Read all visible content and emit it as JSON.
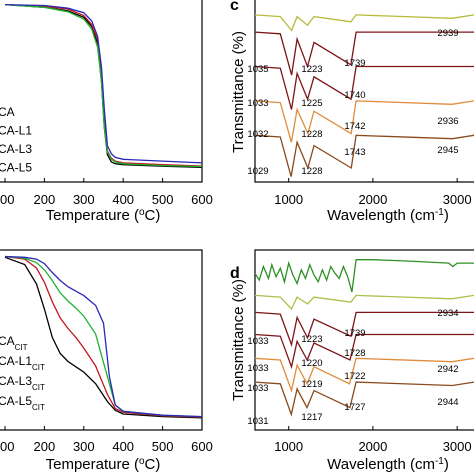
{
  "colors": {
    "black": "#000000",
    "red": "#c0171d",
    "green": "#1fb330",
    "blue": "#2b28b8",
    "olive": "#b7bb3c",
    "maroon": "#7f1418",
    "orange": "#e08c3c",
    "brown": "#8b4a1c",
    "dark_green": "#2f8f25",
    "lime": "#a8c24a"
  },
  "chart_data": [
    {
      "type": "line",
      "panel": "top-left",
      "xlabel": "Temperature (",
      "xlabel_unit": "o",
      "xlabel_end": "C)",
      "ylabel": "",
      "x_ticks": [
        "00",
        "200",
        "300",
        "400",
        "500",
        "600"
      ],
      "xlim": [
        100,
        600
      ],
      "legend": {
        "placement": "bottom-left",
        "entries": [
          "CA",
          "CA-L1",
          "CA-L3",
          "CA-L5"
        ]
      },
      "series": [
        {
          "name": "CA",
          "color": "black",
          "x": [
            100,
            200,
            260,
            300,
            320,
            335,
            345,
            352,
            360,
            370,
            380,
            400,
            500,
            600
          ],
          "y": [
            97.5,
            96.0,
            94.0,
            90.5,
            85.5,
            76.0,
            55.0,
            30.0,
            15.0,
            11.0,
            10.0,
            9.5,
            8.7,
            8.0
          ]
        },
        {
          "name": "CA-L1",
          "color": "red",
          "x": [
            100,
            200,
            260,
            300,
            320,
            335,
            345,
            352,
            360,
            370,
            380,
            400,
            500,
            600
          ],
          "y": [
            97.5,
            96.5,
            95.0,
            91.5,
            86.5,
            78.0,
            60.0,
            35.0,
            17.0,
            13.0,
            11.5,
            10.5,
            9.5,
            8.8
          ]
        },
        {
          "name": "CA-L3",
          "color": "green",
          "x": [
            100,
            200,
            260,
            300,
            320,
            335,
            345,
            352,
            360,
            370,
            380,
            400,
            500,
            600
          ],
          "y": [
            97.5,
            96.0,
            93.5,
            89.5,
            84.0,
            74.0,
            55.0,
            30.0,
            16.5,
            12.5,
            11.0,
            10.0,
            9.0,
            8.5
          ]
        },
        {
          "name": "CA-L5",
          "color": "blue",
          "x": [
            100,
            200,
            260,
            300,
            320,
            335,
            345,
            352,
            360,
            370,
            380,
            400,
            500,
            600
          ],
          "y": [
            97.5,
            97.0,
            95.5,
            93.0,
            88.5,
            80.0,
            63.0,
            40.0,
            20.0,
            15.5,
            13.5,
            12.5,
            11.5,
            10.5
          ]
        }
      ]
    },
    {
      "type": "line",
      "panel": "top-right",
      "label": "c",
      "xlabel": "Wavelength (cm",
      "xlabel_sup": "-1",
      "xlabel_end": ")",
      "ylabel": "Transmittance (%)",
      "x_ticks": [
        "1000",
        "2000",
        "3000"
      ],
      "xlim": [
        600,
        3200
      ],
      "series": [
        {
          "color": "olive",
          "x": [
            600,
            900,
            1035,
            1100,
            1223,
            1300,
            1739,
            1800,
            2939,
            3200
          ],
          "y": [
            0.96,
            0.95,
            0.87,
            0.95,
            0.9,
            0.95,
            0.92,
            0.96,
            0.94,
            0.96
          ]
        },
        {
          "color": "maroon",
          "x": [
            600,
            900,
            1035,
            1100,
            1223,
            1300,
            1739,
            1800,
            3200
          ],
          "y": [
            0.86,
            0.85,
            0.61,
            0.82,
            0.66,
            0.8,
            0.67,
            0.86,
            0.86
          ]
        },
        {
          "color": "maroon",
          "x": [
            600,
            900,
            1033,
            1100,
            1225,
            1300,
            1740,
            1800,
            3200
          ],
          "y": [
            0.66,
            0.65,
            0.41,
            0.62,
            0.47,
            0.6,
            0.47,
            0.66,
            0.66
          ]
        },
        {
          "color": "orange",
          "x": [
            600,
            900,
            1032,
            1100,
            1228,
            1300,
            1742,
            1800,
            2936,
            3200
          ],
          "y": [
            0.46,
            0.45,
            0.22,
            0.41,
            0.27,
            0.4,
            0.27,
            0.46,
            0.44,
            0.46
          ]
        },
        {
          "color": "brown",
          "x": [
            600,
            900,
            1029,
            1100,
            1228,
            1300,
            1743,
            1800,
            2945,
            3200
          ],
          "y": [
            0.26,
            0.25,
            0.02,
            0.22,
            0.07,
            0.2,
            0.07,
            0.26,
            0.24,
            0.26
          ]
        }
      ],
      "annotations": [
        {
          "text": "2939"
        },
        {
          "text": "1035"
        },
        {
          "text": "1223"
        },
        {
          "text": "1739"
        },
        {
          "text": "1033"
        },
        {
          "text": "1225"
        },
        {
          "text": "1740"
        },
        {
          "text": "1032"
        },
        {
          "text": "1228"
        },
        {
          "text": "1742"
        },
        {
          "text": "2936"
        },
        {
          "text": "1029"
        },
        {
          "text": "1228"
        },
        {
          "text": "1743"
        },
        {
          "text": "2945"
        }
      ]
    },
    {
      "type": "line",
      "panel": "bottom-left",
      "xlabel": "Temperature (",
      "xlabel_unit": "o",
      "xlabel_end": "C)",
      "ylabel": "",
      "x_ticks": [
        "00",
        "200",
        "300",
        "400",
        "500",
        "600"
      ],
      "xlim": [
        100,
        600
      ],
      "legend": {
        "placement": "bottom-left",
        "entries": [
          {
            "base": "CA",
            "sub": "CIT"
          },
          {
            "base": "CA-L1",
            "sub": "CIT"
          },
          {
            "base": "CA-L3",
            "sub": "CIT"
          },
          {
            "base": "CA-L5",
            "sub": "CIT"
          }
        ]
      },
      "series": [
        {
          "name": "CA-CIT",
          "color": "black",
          "x": [
            100,
            150,
            180,
            200,
            220,
            240,
            260,
            280,
            300,
            330,
            360,
            380,
            400,
            500,
            600
          ],
          "y": [
            97.0,
            93.0,
            82.0,
            68.0,
            52.0,
            43.0,
            38.5,
            35.5,
            32.5,
            26.0,
            16.0,
            11.0,
            9.0,
            7.5,
            6.8
          ]
        },
        {
          "name": "CA-L1-CIT",
          "color": "red",
          "x": [
            100,
            150,
            180,
            200,
            220,
            240,
            260,
            280,
            300,
            330,
            360,
            380,
            400,
            500,
            600
          ],
          "y": [
            97.5,
            96.0,
            91.0,
            83.0,
            72.0,
            63.0,
            57.0,
            52.0,
            46.0,
            36.0,
            20.0,
            12.0,
            10.0,
            8.0,
            7.2
          ]
        },
        {
          "name": "CA-L3-CIT",
          "color": "green",
          "x": [
            100,
            150,
            180,
            200,
            220,
            240,
            260,
            280,
            300,
            330,
            360,
            380,
            400,
            500,
            600
          ],
          "y": [
            97.5,
            96.5,
            94.0,
            90.0,
            84.0,
            77.0,
            72.5,
            68.5,
            64.0,
            54.0,
            30.0,
            14.0,
            10.5,
            8.2,
            7.5
          ]
        },
        {
          "name": "CA-L5-CIT",
          "color": "blue",
          "x": [
            100,
            150,
            180,
            200,
            220,
            240,
            260,
            280,
            300,
            330,
            350,
            365,
            380,
            400,
            500,
            600
          ],
          "y": [
            97.5,
            97.0,
            96.0,
            93.5,
            88.5,
            84.0,
            80.5,
            78.0,
            75.5,
            70.0,
            60.0,
            30.0,
            14.0,
            10.5,
            8.3,
            7.5
          ]
        }
      ]
    },
    {
      "type": "line",
      "panel": "bottom-right",
      "label": "d",
      "xlabel": "Wavelength (cm",
      "xlabel_sup": "-1",
      "xlabel_end": ")",
      "ylabel": "Transmittance (%)",
      "x_ticks": [
        "1000",
        "2000",
        "3000"
      ],
      "xlim": [
        600,
        3200
      ],
      "series": [
        {
          "color": "dark_green",
          "x": [
            600,
            650,
            700,
            760,
            800,
            850,
            900,
            950,
            1000,
            1050,
            1100,
            1150,
            1200,
            1250,
            1300,
            1350,
            1400,
            1450,
            1500,
            1550,
            1600,
            1650,
            1700,
            1750,
            1800,
            2000,
            2500,
            2900,
            2950,
            3000,
            3200
          ],
          "y": [
            0.91,
            0.87,
            0.95,
            0.88,
            0.96,
            0.89,
            0.94,
            0.86,
            0.97,
            0.9,
            0.85,
            0.93,
            0.88,
            0.96,
            0.9,
            0.86,
            0.93,
            0.87,
            0.95,
            0.91,
            0.88,
            0.95,
            0.89,
            0.8,
            0.99,
            0.99,
            0.98,
            0.97,
            0.95,
            0.97,
            0.97
          ]
        },
        {
          "color": "lime",
          "x": [
            600,
            900,
            1033,
            1100,
            1223,
            1300,
            1739,
            1800,
            2934,
            3200
          ],
          "y": [
            0.78,
            0.77,
            0.7,
            0.77,
            0.73,
            0.77,
            0.74,
            0.78,
            0.76,
            0.78
          ]
        },
        {
          "color": "maroon",
          "x": [
            600,
            900,
            1033,
            1100,
            1223,
            1300,
            1739,
            1800,
            3200
          ],
          "y": [
            0.68,
            0.67,
            0.49,
            0.65,
            0.53,
            0.64,
            0.54,
            0.68,
            0.68
          ]
        },
        {
          "color": "maroon",
          "x": [
            600,
            900,
            1033,
            1100,
            1220,
            1300,
            1728,
            1800,
            3200
          ],
          "y": [
            0.55,
            0.54,
            0.36,
            0.51,
            0.4,
            0.5,
            0.4,
            0.55,
            0.55
          ]
        },
        {
          "color": "orange",
          "x": [
            600,
            900,
            1033,
            1100,
            1219,
            1300,
            1722,
            1800,
            2942,
            3200
          ],
          "y": [
            0.41,
            0.4,
            0.22,
            0.37,
            0.26,
            0.36,
            0.26,
            0.41,
            0.39,
            0.41
          ]
        },
        {
          "color": "brown",
          "x": [
            600,
            900,
            1031,
            1100,
            1217,
            1300,
            1727,
            1800,
            2944,
            3200
          ],
          "y": [
            0.27,
            0.26,
            0.08,
            0.23,
            0.12,
            0.22,
            0.12,
            0.27,
            0.25,
            0.27
          ]
        }
      ],
      "annotations": [
        {
          "text": "2934"
        },
        {
          "text": "1033"
        },
        {
          "text": "1223"
        },
        {
          "text": "1739"
        },
        {
          "text": "1033"
        },
        {
          "text": "1220"
        },
        {
          "text": "1728"
        },
        {
          "text": "1033"
        },
        {
          "text": "1219"
        },
        {
          "text": "1722"
        },
        {
          "text": "2942"
        },
        {
          "text": "1031"
        },
        {
          "text": "1217"
        },
        {
          "text": "1727"
        },
        {
          "text": "2944"
        }
      ]
    }
  ]
}
